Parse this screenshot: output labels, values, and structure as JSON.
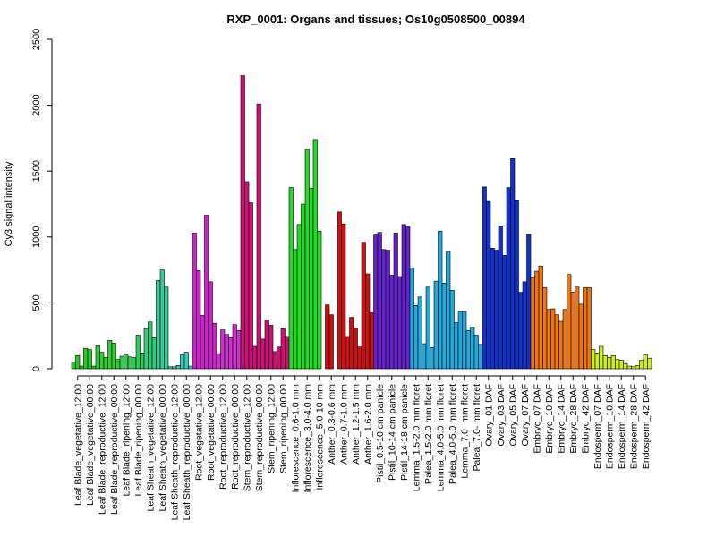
{
  "chart_data": {
    "type": "bar",
    "title": "RXP_0001: Organs and tissues; Os10g0508500_00894",
    "xlabel": "",
    "ylabel": "Cy3 signal intensity",
    "ylim": [
      0,
      2500
    ],
    "yticks": [
      "0",
      "500",
      "1000",
      "1500",
      "2000",
      "2500"
    ],
    "grid": false,
    "legend": "none",
    "groups": [
      {
        "label": "Leaf Blade_vegetative_12:00",
        "color": "#22cc22",
        "values": [
          50,
          100,
          20
        ]
      },
      {
        "label": "Leaf Blade_vegetative_00:00",
        "color": "#22cc22",
        "values": [
          155,
          145,
          20
        ]
      },
      {
        "label": "Leaf Blade_reproductive_12:00",
        "color": "#33cc33",
        "values": [
          175,
          125,
          85
        ]
      },
      {
        "label": "Leaf Blade_reproductive_00:00",
        "color": "#33cc33",
        "values": [
          215,
          195,
          70
        ]
      },
      {
        "label": "Leaf Blade_ripening_12:00",
        "color": "#33cc55",
        "values": [
          95,
          110,
          90
        ]
      },
      {
        "label": "Leaf Blade_ripening_00:00",
        "color": "#33cc55",
        "values": [
          85,
          255,
          120
        ]
      },
      {
        "label": "Leaf Sheath_vegetative_12:00",
        "color": "#33cc77",
        "values": [
          305,
          355,
          235
        ]
      },
      {
        "label": "Leaf Sheath_vegetative_00:00",
        "color": "#33cc99",
        "values": [
          670,
          750,
          620
        ]
      },
      {
        "label": "Leaf Sheath_reproductive_12:00",
        "color": "#33ccaa",
        "values": [
          15,
          15,
          25
        ]
      },
      {
        "label": "Leaf Sheath_reproductive_00:00",
        "color": "#33ccbb",
        "values": [
          105,
          125,
          20
        ]
      },
      {
        "label": "Root_vegetative_12:00",
        "color": "#cc22cc",
        "values": [
          1030,
          745,
          405
        ]
      },
      {
        "label": "Root_vegetative_00:00",
        "color": "#cc22cc",
        "values": [
          1165,
          660,
          345
        ]
      },
      {
        "label": "Root_reproductive_12:00",
        "color": "#cc33cc",
        "values": [
          115,
          295,
          260
        ]
      },
      {
        "label": "Root_reproductive_00:00",
        "color": "#cc33cc",
        "values": [
          235,
          335,
          290
        ]
      },
      {
        "label": "Stem_reproductive_12:00",
        "color": "#cc1177",
        "values": [
          2225,
          1420,
          1260
        ]
      },
      {
        "label": "Stem_reproductive_00:00",
        "color": "#cc1177",
        "values": [
          170,
          2010,
          225
        ]
      },
      {
        "label": "Stem_ripening_12:00",
        "color": "#cc1177",
        "values": [
          370,
          330,
          130
        ]
      },
      {
        "label": "Stem_ripening_00:00",
        "color": "#cc1177",
        "values": [
          165,
          305,
          245
        ]
      },
      {
        "label": "Inflorescence_0.6-1.0 mm",
        "color": "#22dd22",
        "values": [
          1375,
          905,
          1095
        ]
      },
      {
        "label": "Inflorescence_3.0-4.0 mm",
        "color": "#22dd22",
        "values": [
          1250,
          1665,
          1370
        ]
      },
      {
        "label": "Inflorescence_5.0-10 mm",
        "color": "#22dd22",
        "values": [
          1740,
          1045,
          null
        ]
      },
      {
        "label": "Anther_0.3-0.6 mm",
        "color": "#cc1111",
        "values": [
          485,
          410,
          null
        ]
      },
      {
        "label": "Anther_0.7-1.0 mm",
        "color": "#cc1111",
        "values": [
          1190,
          1100,
          245
        ]
      },
      {
        "label": "Anther_1.2-1.5 mm",
        "color": "#cc1111",
        "values": [
          390,
          310,
          165
        ]
      },
      {
        "label": "Anther_1.6-2.0 mm",
        "color": "#cc1111",
        "values": [
          960,
          720,
          425
        ]
      },
      {
        "label": "Pistil_0.5-10 cm panicle",
        "color": "#6622cc",
        "values": [
          1015,
          1035,
          905
        ]
      },
      {
        "label": "Pistil_10-14 cm panicle",
        "color": "#6622cc",
        "values": [
          900,
          710,
          1030
        ]
      },
      {
        "label": "Pistil_14-18 cm panicle",
        "color": "#6622cc",
        "values": [
          700,
          1095,
          1080
        ]
      },
      {
        "label": "Lemma_1.5-2.0 mm floret",
        "color": "#22aadd",
        "values": [
          765,
          480,
          545
        ]
      },
      {
        "label": "Palea_1.5-2.0 mm floret",
        "color": "#22aadd",
        "values": [
          190,
          620,
          160
        ]
      },
      {
        "label": "Lemma_4.0-5.0 mm floret",
        "color": "#22aadd",
        "values": [
          665,
          1045,
          650
        ]
      },
      {
        "label": "Palea_4.0-5.0 mm floret",
        "color": "#22aadd",
        "values": [
          890,
          595,
          350
        ]
      },
      {
        "label": "Lemma_7.0- mm floret",
        "color": "#22aadd",
        "values": [
          435,
          435,
          290
        ]
      },
      {
        "label": "Palea_7.0- mm floret",
        "color": "#22aadd",
        "values": [
          315,
          255,
          185
        ]
      },
      {
        "label": "Ovary_01 DAF",
        "color": "#1133cc",
        "values": [
          1380,
          1270,
          915
        ]
      },
      {
        "label": "Ovary_03 DAF",
        "color": "#1133cc",
        "values": [
          900,
          1085,
          860
        ]
      },
      {
        "label": "Ovary_05 DAF",
        "color": "#1133cc",
        "values": [
          1375,
          1595,
          1275
        ]
      },
      {
        "label": "Ovary_07 DAF",
        "color": "#1133cc",
        "values": [
          580,
          660,
          1020
        ]
      },
      {
        "label": "Embryo_07 DAF",
        "color": "#ee7711",
        "values": [
          690,
          740,
          780
        ]
      },
      {
        "label": "Embryo_10 DAF",
        "color": "#ee7711",
        "values": [
          615,
          450,
          455
        ]
      },
      {
        "label": "Embryo_14 DAF",
        "color": "#ee7711",
        "values": [
          410,
          360,
          450
        ]
      },
      {
        "label": "Embryo_28 DAF",
        "color": "#ee7711",
        "values": [
          715,
          580,
          620
        ]
      },
      {
        "label": "Embryo_42 DAF",
        "color": "#ee7711",
        "values": [
          490,
          615,
          615
        ]
      },
      {
        "label": "Endosperm_07 DAF",
        "color": "#ccee22",
        "values": [
          145,
          120,
          170
        ]
      },
      {
        "label": "Endosperm_10 DAF",
        "color": "#ccee22",
        "values": [
          100,
          85,
          100
        ]
      },
      {
        "label": "Endosperm_14 DAF",
        "color": "#ccee22",
        "values": [
          70,
          65,
          40
        ]
      },
      {
        "label": "Endosperm_28 DAF",
        "color": "#ccee22",
        "values": [
          20,
          15,
          25
        ]
      },
      {
        "label": "Endosperm_42 DAF",
        "color": "#ccee22",
        "values": [
          65,
          105,
          80
        ]
      }
    ]
  }
}
